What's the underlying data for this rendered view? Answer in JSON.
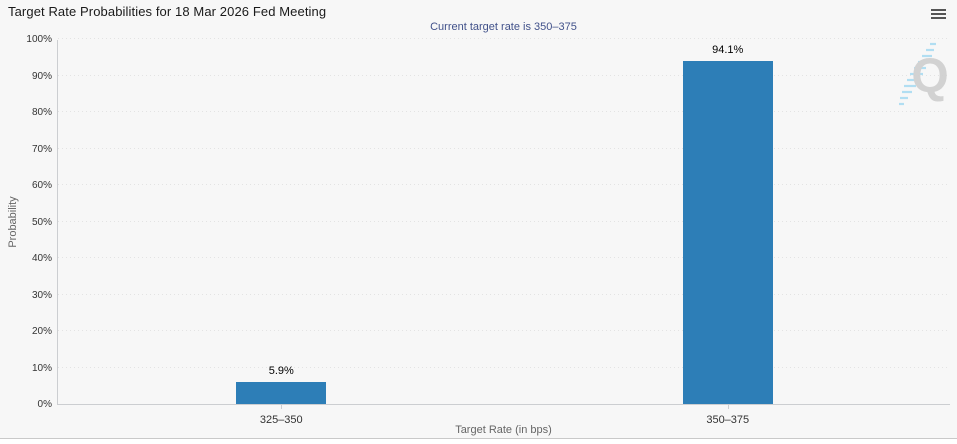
{
  "header": {
    "menu_icon": "hamburger-menu"
  },
  "watermark": {
    "letter": "Q"
  },
  "colors": {
    "bar": "#2d7eb7",
    "subtitle_text": "#41518a",
    "background": "#f7f7f7"
  },
  "chart_data": {
    "type": "bar",
    "title": "Target Rate Probabilities for 18 Mar 2026 Fed Meeting",
    "subtitle": "Current target rate is 350–375",
    "categories": [
      "325–350",
      "350–375"
    ],
    "values": [
      5.9,
      94.1
    ],
    "data_labels": [
      "5.9%",
      "94.1%"
    ],
    "xlabel": "Target Rate (in bps)",
    "ylabel": "Probability",
    "ylim": [
      0,
      100
    ],
    "ytick_step": 10,
    "ytick_suffix": "%",
    "grid": true,
    "legend": false,
    "bar_color": "#2d7eb7"
  }
}
